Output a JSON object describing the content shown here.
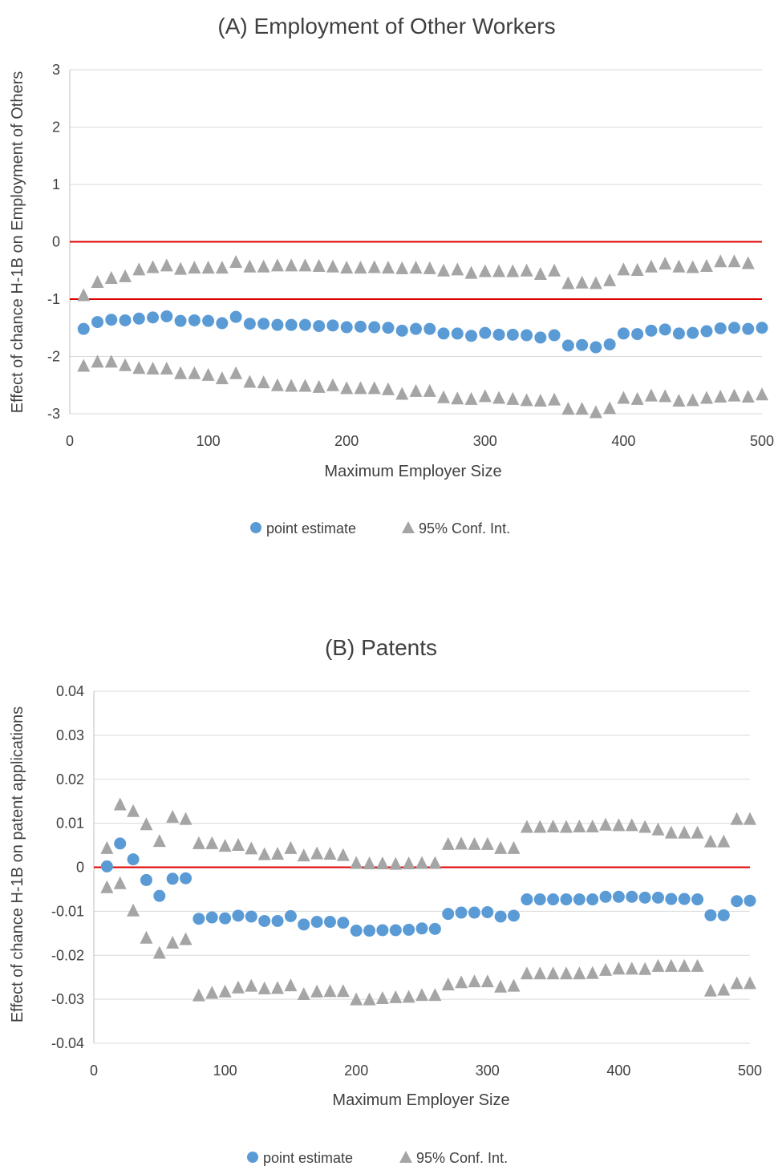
{
  "chart_data": [
    {
      "type": "scatter",
      "title": "(A) Employment of Other Workers",
      "xlabel": "Maximum Employer Size",
      "ylabel": "Effect of chance H-1B on Employment of Others",
      "xlim": [
        0,
        500
      ],
      "ylim": [
        -3,
        3
      ],
      "xticks": [
        0,
        100,
        200,
        300,
        400,
        500
      ],
      "yticks": [
        -3,
        -2,
        -1,
        0,
        1,
        2,
        3
      ],
      "grid": "horizontal",
      "reference_lines_y": [
        0,
        -1
      ],
      "legend_position": "bottom",
      "x": [
        10,
        20,
        30,
        40,
        50,
        60,
        70,
        80,
        90,
        100,
        110,
        120,
        130,
        140,
        150,
        160,
        170,
        180,
        190,
        200,
        210,
        220,
        230,
        240,
        250,
        260,
        270,
        280,
        290,
        300,
        310,
        320,
        330,
        340,
        350,
        360,
        370,
        380,
        390,
        400,
        410,
        420,
        430,
        440,
        450,
        460,
        470,
        480,
        490,
        500
      ],
      "series": [
        {
          "name": "point estimate",
          "marker": "circle",
          "color": "#5b9bd5",
          "values": [
            -1.52,
            -1.4,
            -1.36,
            -1.37,
            -1.34,
            -1.32,
            -1.3,
            -1.38,
            -1.37,
            -1.38,
            -1.42,
            -1.31,
            -1.43,
            -1.43,
            -1.45,
            -1.45,
            -1.45,
            -1.47,
            -1.46,
            -1.49,
            -1.48,
            -1.49,
            -1.5,
            -1.55,
            -1.52,
            -1.52,
            -1.6,
            -1.6,
            -1.64,
            -1.59,
            -1.62,
            -1.62,
            -1.63,
            -1.67,
            -1.63,
            -1.81,
            -1.8,
            -1.84,
            -1.79,
            -1.6,
            -1.61,
            -1.55,
            -1.53,
            -1.6,
            -1.59,
            -1.56,
            -1.51,
            -1.5,
            -1.52,
            -1.5
          ]
        },
        {
          "name": "95% Conf. Int.",
          "marker": "triangle",
          "color": "#a5a5a5",
          "upper": [
            -0.93,
            -0.7,
            -0.63,
            -0.6,
            -0.48,
            -0.44,
            -0.41,
            -0.47,
            -0.45,
            -0.45,
            -0.45,
            -0.35,
            -0.43,
            -0.43,
            -0.41,
            -0.41,
            -0.41,
            -0.42,
            -0.43,
            -0.45,
            -0.45,
            -0.44,
            -0.45,
            -0.46,
            -0.45,
            -0.46,
            -0.5,
            -0.48,
            -0.54,
            -0.51,
            -0.51,
            -0.51,
            -0.5,
            -0.56,
            -0.5,
            -0.72,
            -0.71,
            -0.72,
            -0.67,
            -0.48,
            -0.49,
            -0.43,
            -0.38,
            -0.43,
            -0.44,
            -0.42,
            -0.34,
            -0.34,
            -0.37,
            null
          ],
          "lower": [
            -2.16,
            -2.09,
            -2.09,
            -2.15,
            -2.2,
            -2.21,
            -2.21,
            -2.29,
            -2.29,
            -2.32,
            -2.38,
            -2.29,
            -2.44,
            -2.45,
            -2.5,
            -2.51,
            -2.51,
            -2.53,
            -2.5,
            -2.55,
            -2.55,
            -2.55,
            -2.57,
            -2.65,
            -2.6,
            -2.6,
            -2.71,
            -2.73,
            -2.74,
            -2.69,
            -2.72,
            -2.74,
            -2.76,
            -2.77,
            -2.75,
            -2.91,
            -2.91,
            -2.97,
            -2.9,
            -2.72,
            -2.74,
            -2.68,
            -2.69,
            -2.77,
            -2.76,
            -2.72,
            -2.7,
            -2.68,
            -2.7,
            -2.66
          ]
        }
      ]
    },
    {
      "type": "scatter",
      "title": "(B) Patents",
      "xlabel": "Maximum Employer Size",
      "ylabel": "Effect of chance H-1B on patent applications",
      "xlim": [
        0,
        500
      ],
      "ylim": [
        -0.04,
        0.04
      ],
      "xticks": [
        0,
        100,
        200,
        300,
        400,
        500
      ],
      "yticks": [
        -0.04,
        -0.03,
        -0.02,
        -0.01,
        0,
        0.01,
        0.02,
        0.03,
        0.04
      ],
      "ytick_labels": [
        "-0.04",
        "-0.03",
        "-0.02",
        "-0.01",
        "0",
        "0.01",
        "0.02",
        "0.03",
        "0.04"
      ],
      "grid": "horizontal",
      "reference_lines_y": [
        0
      ],
      "legend_position": "bottom",
      "x": [
        10,
        20,
        30,
        40,
        50,
        60,
        70,
        80,
        90,
        100,
        110,
        120,
        130,
        140,
        150,
        160,
        170,
        180,
        190,
        200,
        210,
        220,
        230,
        240,
        250,
        260,
        270,
        280,
        290,
        300,
        310,
        320,
        330,
        340,
        350,
        360,
        370,
        380,
        390,
        400,
        410,
        420,
        430,
        440,
        450,
        460,
        470,
        480,
        490,
        500
      ],
      "series": [
        {
          "name": "point estimate",
          "marker": "circle",
          "color": "#5b9bd5",
          "values": [
            0.0002,
            0.0054,
            0.0018,
            -0.0029,
            -0.0065,
            -0.0026,
            -0.0025,
            -0.0117,
            -0.0114,
            -0.0116,
            -0.011,
            -0.0112,
            -0.0122,
            -0.0122,
            -0.0111,
            -0.013,
            -0.0124,
            -0.0124,
            -0.0126,
            -0.0144,
            -0.0144,
            -0.0143,
            -0.0143,
            -0.0142,
            -0.0139,
            -0.014,
            -0.0106,
            -0.0103,
            -0.0103,
            -0.0102,
            -0.0112,
            -0.011,
            -0.0073,
            -0.0073,
            -0.0073,
            -0.0073,
            -0.0073,
            -0.0073,
            -0.0067,
            -0.0067,
            -0.0067,
            -0.0069,
            -0.0069,
            -0.0072,
            -0.0072,
            -0.0073,
            -0.0109,
            -0.0109,
            -0.0077,
            -0.0076
          ]
        },
        {
          "name": "95% Conf. Int.",
          "marker": "triangle",
          "color": "#a5a5a5",
          "upper": [
            0.0044,
            0.0143,
            0.0128,
            0.0098,
            0.006,
            0.0115,
            0.011,
            0.0055,
            0.0055,
            0.0049,
            0.0051,
            0.0043,
            0.003,
            0.0031,
            0.0044,
            0.0027,
            0.0032,
            0.0031,
            0.0028,
            0.001,
            0.0009,
            0.0009,
            0.0008,
            0.0009,
            0.001,
            0.001,
            0.0053,
            0.0054,
            0.0053,
            0.0053,
            0.0044,
            0.0044,
            0.0092,
            0.0092,
            0.0093,
            0.0092,
            0.0093,
            0.0093,
            0.0097,
            0.0096,
            0.0096,
            0.0092,
            0.0086,
            0.0079,
            0.0079,
            0.0079,
            0.0059,
            0.0059,
            0.011,
            0.011
          ],
          "lower": [
            -0.0045,
            -0.0036,
            -0.0098,
            -0.016,
            -0.0194,
            -0.0171,
            -0.0163,
            -0.0291,
            -0.0285,
            -0.0282,
            -0.0273,
            -0.0269,
            -0.0275,
            -0.0274,
            -0.0268,
            -0.0288,
            -0.0282,
            -0.0281,
            -0.0281,
            -0.03,
            -0.03,
            -0.0297,
            -0.0295,
            -0.0294,
            -0.029,
            -0.029,
            -0.0266,
            -0.0261,
            -0.0259,
            -0.0259,
            -0.0271,
            -0.0269,
            -0.0241,
            -0.0241,
            -0.0241,
            -0.0241,
            -0.0241,
            -0.024,
            -0.0233,
            -0.023,
            -0.023,
            -0.0231,
            -0.0224,
            -0.0224,
            -0.0224,
            -0.0224,
            -0.028,
            -0.0278,
            -0.0263,
            -0.0263
          ]
        }
      ]
    }
  ]
}
